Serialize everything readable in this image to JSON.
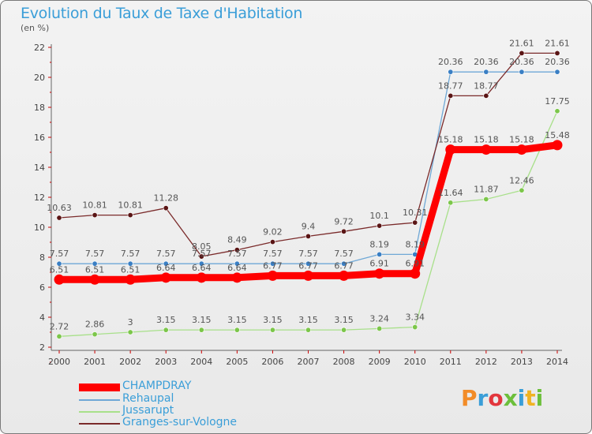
{
  "header": {
    "title": "Evolution du Taux de Taxe d'Habitation",
    "unit": "(en %)"
  },
  "logo": {
    "text": "Proxiti",
    "colors": [
      "#f28c28",
      "#3a9ed8",
      "#e2363c",
      "#6cbf3b",
      "#3a9ed8",
      "#f0b323",
      "#6cbf3b"
    ]
  },
  "chart_data": {
    "type": "line",
    "title": "Evolution du Taux de Taxe d'Habitation",
    "ylabel": "(en %)",
    "xlabel": "",
    "ylim": [
      2,
      22
    ],
    "yticks": [
      2,
      4,
      6,
      8,
      10,
      12,
      14,
      16,
      18,
      20,
      22
    ],
    "grid": false,
    "legend_position": "bottom-left",
    "x": [
      "2000",
      "2001",
      "2002",
      "2003",
      "2004",
      "2005",
      "2006",
      "2007",
      "2008",
      "2009",
      "2010",
      "2011",
      "2012",
      "2013",
      "2014"
    ],
    "series": [
      {
        "name": "CHAMPDRAY",
        "color": "#ff0000",
        "marker": "#ff0000",
        "values": [
          6.51,
          6.51,
          6.51,
          6.64,
          6.64,
          6.64,
          6.77,
          6.77,
          6.77,
          6.91,
          6.91,
          15.18,
          15.18,
          15.18,
          15.48
        ],
        "labels": [
          "6.51",
          "6.51",
          "6.51",
          "6.64",
          "6.64",
          "6.64",
          "6.77",
          "6.77",
          "6.77",
          "6.91",
          "6.91",
          "15.18",
          "15.18",
          "15.18",
          "15.48"
        ]
      },
      {
        "name": "Rehaupal",
        "color": "#6fa8d6",
        "marker": "#3a7fc4",
        "values": [
          7.57,
          7.57,
          7.57,
          7.57,
          7.57,
          7.57,
          7.57,
          7.57,
          7.57,
          8.19,
          8.19,
          20.36,
          20.36,
          20.36,
          20.36
        ],
        "labels": [
          "7.57",
          "7.57",
          "7.57",
          "7.57",
          "7.57",
          "7.57",
          "7.57",
          "7.57",
          "7.57",
          "8.19",
          "8.19",
          "20.36",
          "20.36",
          "20.36",
          "20.36"
        ]
      },
      {
        "name": "Jussarupt",
        "color": "#a8e08a",
        "marker": "#7cc64a",
        "values": [
          2.72,
          2.86,
          3,
          3.15,
          3.15,
          3.15,
          3.15,
          3.15,
          3.15,
          3.24,
          3.34,
          11.64,
          11.87,
          12.46,
          17.75
        ],
        "labels": [
          "2.72",
          "2.86",
          "3",
          "3.15",
          "3.15",
          "3.15",
          "3.15",
          "3.15",
          "3.15",
          "3.24",
          "3.34",
          "11.64",
          "11.87",
          "12.46",
          "17.75"
        ]
      },
      {
        "name": "Granges-sur-Vologne",
        "color": "#7a2a2a",
        "marker": "#5a1515",
        "values": [
          10.63,
          10.81,
          10.81,
          11.28,
          8.05,
          8.49,
          9.02,
          9.4,
          9.72,
          10.1,
          10.31,
          18.77,
          18.77,
          21.61,
          21.61
        ],
        "labels": [
          "10.63",
          "10.81",
          "10.81",
          "11.28",
          "8.05",
          "8.49",
          "9.02",
          "9.4",
          "9.72",
          "10.1",
          "10.31",
          "18.77",
          "18.77",
          "21.61",
          "21.61"
        ]
      }
    ]
  }
}
